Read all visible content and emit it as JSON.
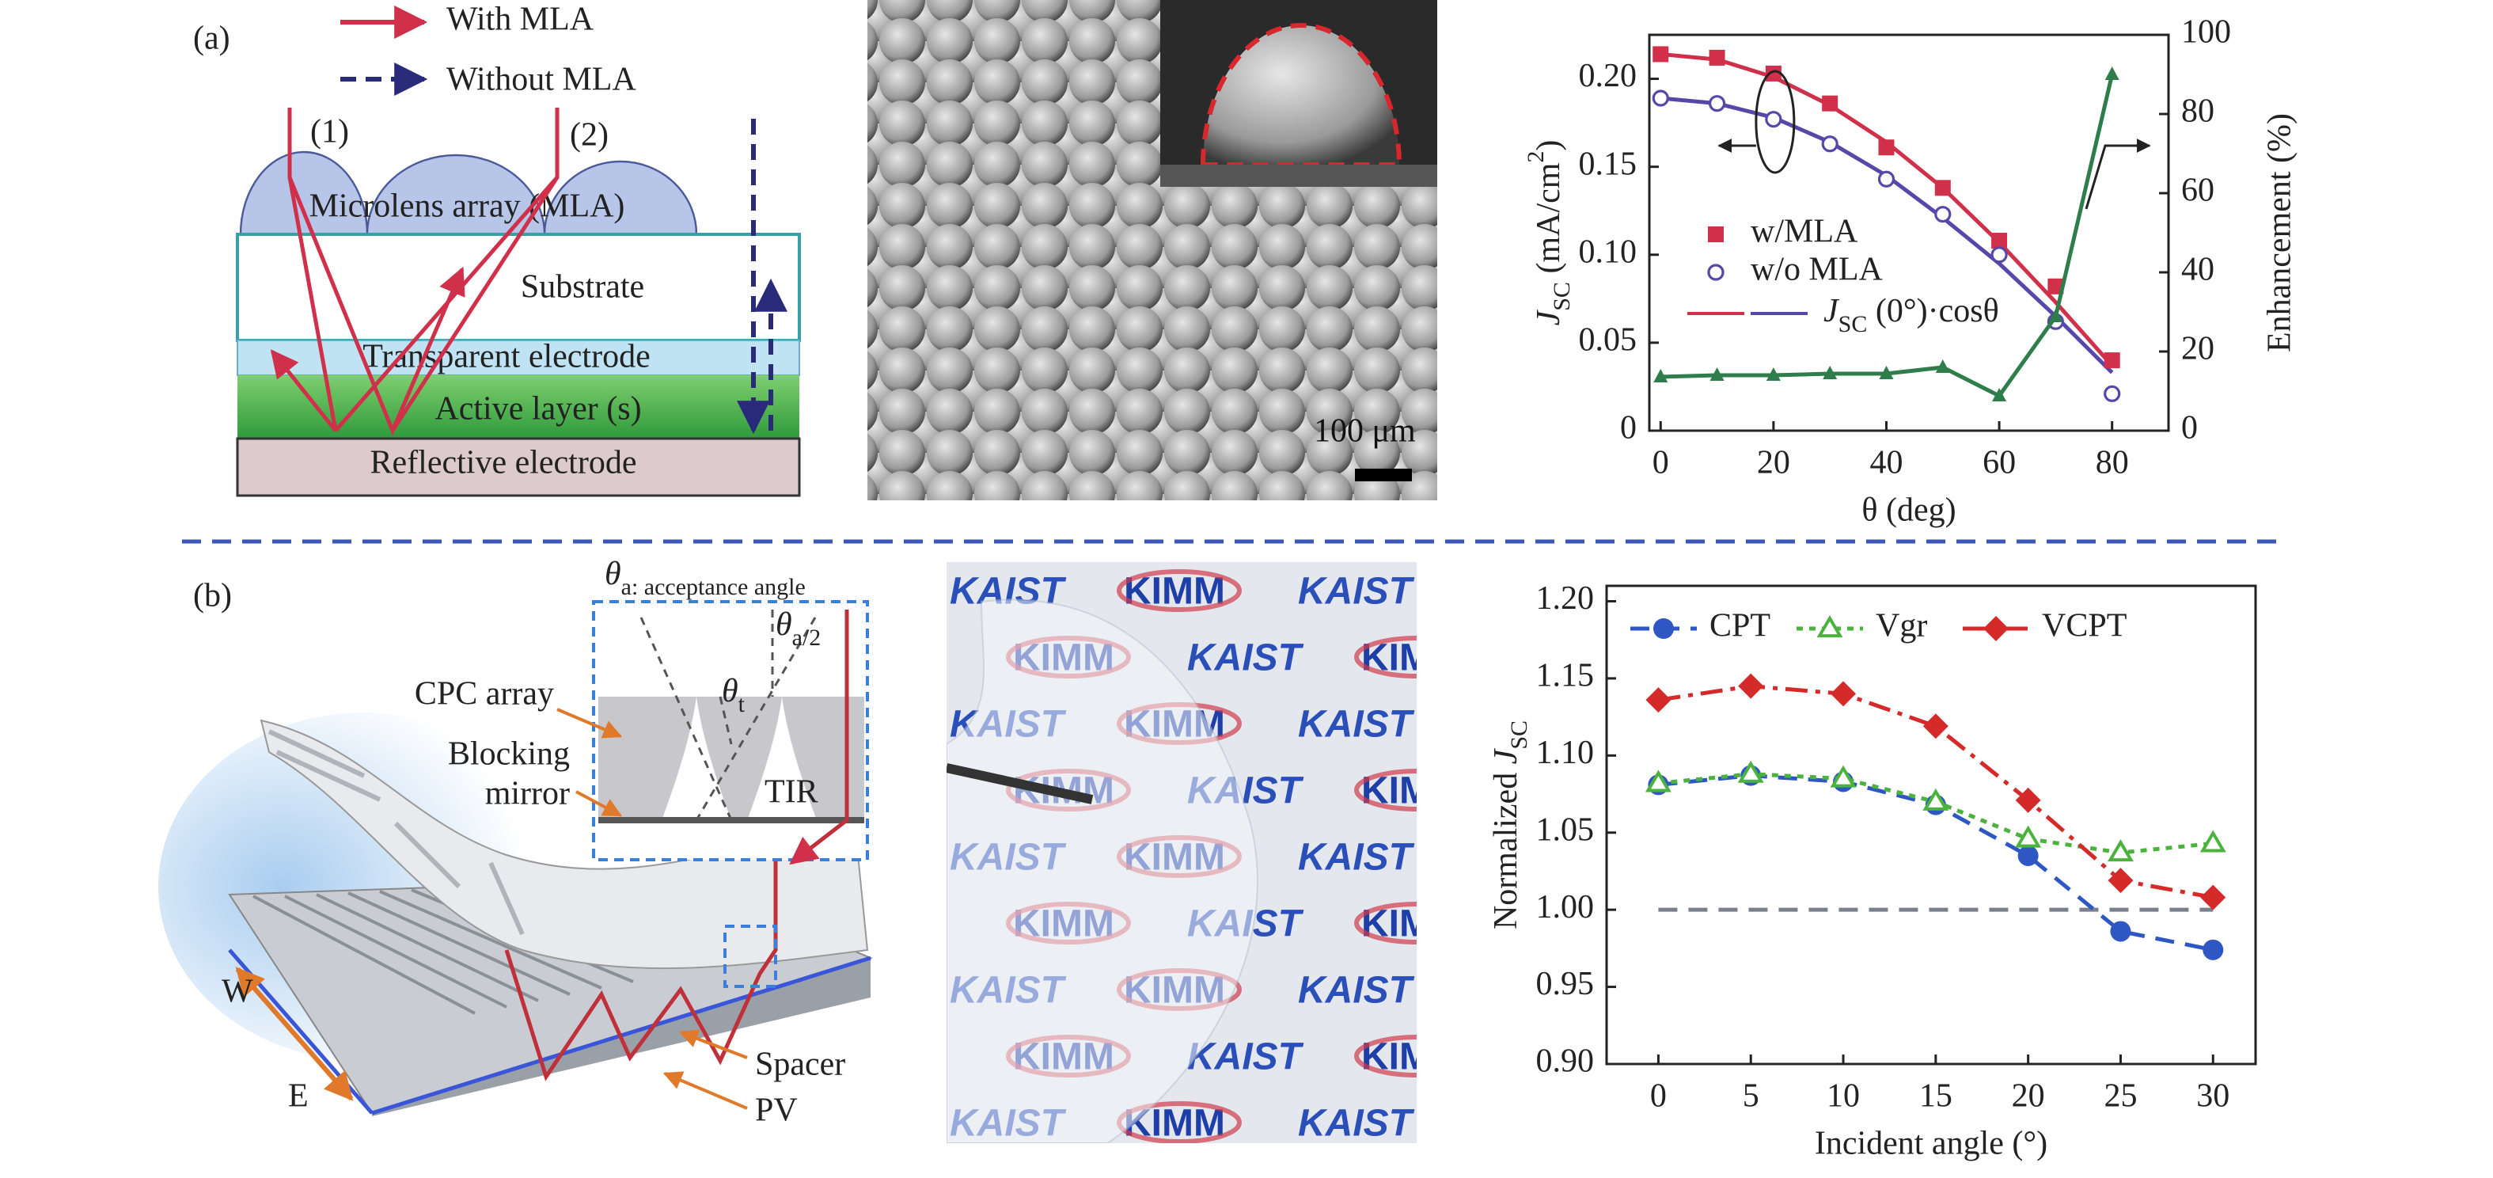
{
  "panel_a": {
    "label": "(a)",
    "legend_with": "With MLA",
    "legend_without": "Without MLA",
    "ray1": "(1)",
    "ray2": "(2)",
    "mla": "Microlens array (MLA)",
    "substrate": "Substrate",
    "transparent": "Transparent electrode",
    "active": "Active layer (s)",
    "reflective": "Reflective electrode",
    "scale_bar": "100 μm"
  },
  "panel_b": {
    "label": "(b)",
    "acceptance": [
      "θ",
      "a: acceptance angle"
    ],
    "half_angle": [
      "θ",
      "a/2"
    ],
    "theta_t": [
      "θ",
      "t"
    ],
    "tir": "TIR",
    "cpc": "CPC array",
    "blocking": "Blocking",
    "mirror": "mirror",
    "w": "W",
    "e": "E",
    "spacer": "Spacer",
    "pv": "PV",
    "photo_logos": [
      "KAIST",
      "KIMM"
    ]
  },
  "chart_data": [
    {
      "type": "line",
      "xlabel": "θ (deg)",
      "ylabel": [
        "J",
        "SC",
        " (mA/cm",
        "2",
        ")"
      ],
      "y2label": "Enhancement (%)",
      "x": [
        0,
        10,
        20,
        30,
        40,
        50,
        60,
        70,
        80
      ],
      "xlim": [
        -2,
        90
      ],
      "xticks": [
        0,
        20,
        40,
        60,
        80
      ],
      "ylim": [
        0,
        0.225
      ],
      "yticks": [
        0,
        0.05,
        {
          "value": 0.1,
          "label": "0.10"
        },
        0.15,
        {
          "value": 0.2,
          "label": "0.20"
        }
      ],
      "y2lim": [
        0,
        100
      ],
      "y2ticks": [
        0,
        20,
        40,
        60,
        80,
        100
      ],
      "legend": "center left",
      "series": [
        {
          "name": "w/MLA",
          "color": "#d0304a",
          "marker": "square",
          "line": "none",
          "values": [
            0.214,
            0.212,
            0.203,
            0.186,
            0.161,
            0.138,
            0.108,
            0.082,
            0.04
          ]
        },
        {
          "name": "w/o MLA",
          "color": "#5548a8",
          "marker": "open-circle",
          "line": "none",
          "values": [
            0.189,
            0.186,
            0.177,
            0.163,
            0.143,
            0.123,
            0.1,
            0.062,
            0.021
          ]
        },
        {
          "color": "#2e7d4a",
          "marker": "triangle",
          "line": "solid",
          "axis": "y2",
          "values": [
            13.6,
            14,
            14,
            14.4,
            14.4,
            16,
            8.8,
            28.8,
            90
          ]
        }
      ],
      "fit_lines": {
        "name": [
          "J",
          "SC",
          " (0°)·cosθ"
        ],
        "series": [
          {
            "color": "#d0304a",
            "values": [
              0.214,
              0.211,
              0.201,
              0.185,
              0.164,
              0.138,
              0.107,
              0.073,
              0.037
            ]
          },
          {
            "color": "#5548a8",
            "values": [
              0.189,
              0.186,
              0.178,
              0.164,
              0.145,
              0.121,
              0.095,
              0.065,
              0.033
            ]
          }
        ]
      }
    },
    {
      "type": "line",
      "xlabel": "Incident angle (°)",
      "ylabel": [
        "Normalized ",
        "J",
        "SC"
      ],
      "x": [
        0,
        5,
        10,
        15,
        20,
        25,
        30
      ],
      "xlim": [
        -2.8,
        32.3
      ],
      "xticks": [
        0,
        5,
        10,
        15,
        20,
        25,
        30
      ],
      "ylim": [
        0.9,
        1.21
      ],
      "yticks": [
        {
          "value": 0.9,
          "label": "0.90"
        },
        0.95,
        {
          "value": 1,
          "label": "1.00"
        },
        1.05,
        {
          "value": 1.1,
          "label": "1.10"
        },
        1.15,
        {
          "value": 1.2,
          "label": "1.20"
        }
      ],
      "legend": "upper left",
      "reference": {
        "value": 1,
        "color": "#7a7f8c"
      },
      "series": [
        {
          "name": "CPT",
          "color": "#2f57c4",
          "marker": "circle",
          "line": "dashed",
          "values": [
            1.081,
            1.087,
            1.083,
            1.068,
            1.035,
            0.986,
            0.974
          ]
        },
        {
          "name": "Vgr",
          "color": "#4bb33d",
          "marker": "open-triangle",
          "line": "dotted",
          "values": [
            1.082,
            1.088,
            1.085,
            1.07,
            1.046,
            1.037,
            1.043
          ]
        },
        {
          "name": "VCPT",
          "color": "#d42a2a",
          "marker": "diamond",
          "line": "dashdot",
          "values": [
            1.136,
            1.145,
            1.14,
            1.119,
            1.071,
            1.019,
            1.008
          ]
        }
      ]
    }
  ]
}
